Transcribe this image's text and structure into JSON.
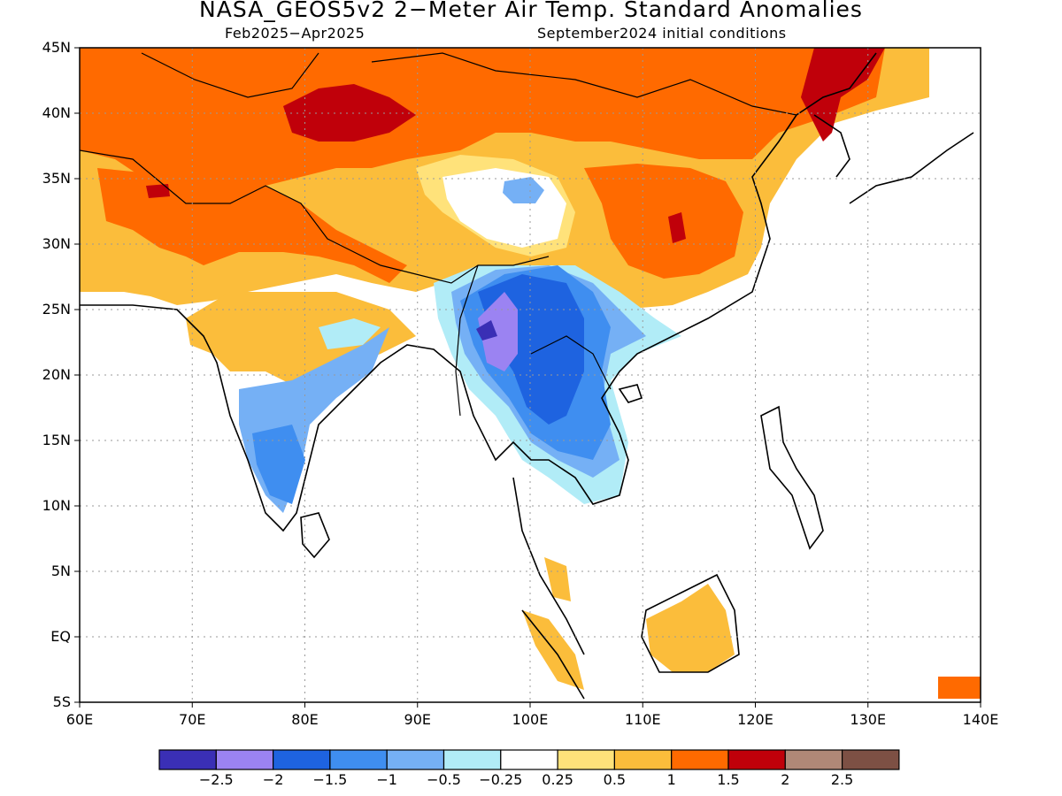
{
  "title": "NASA_GEOS5v2 2−Meter Air Temp. Standard Anomalies",
  "subtitle_left": "Feb2025−Apr2025",
  "subtitle_right": "September2024 initial conditions",
  "map": {
    "lon_range": [
      60,
      140
    ],
    "lat_range": [
      -5,
      45
    ],
    "lat_ticks": [
      "45N",
      "40N",
      "35N",
      "30N",
      "25N",
      "20N",
      "15N",
      "10N",
      "5N",
      "EQ",
      "5S"
    ],
    "lon_ticks": [
      "60E",
      "70E",
      "80E",
      "90E",
      "100E",
      "110E",
      "120E",
      "130E",
      "140E"
    ],
    "grid": "dotted"
  },
  "colorbar": {
    "colors": [
      "#3a2fb5",
      "#9b83f2",
      "#1e63e0",
      "#3f8ef0",
      "#75b0f5",
      "#b1ecf7",
      "#ffffff",
      "#ffe27a",
      "#fbbd3b",
      "#ff6a00",
      "#c0000a",
      "#b08877",
      "#7d5044"
    ],
    "labels": [
      "−2.5",
      "−2",
      "−1.5",
      "−1",
      "−0.5",
      "−0.25",
      "0.25",
      "0.5",
      "1",
      "1.5",
      "2",
      "2.5"
    ]
  }
}
